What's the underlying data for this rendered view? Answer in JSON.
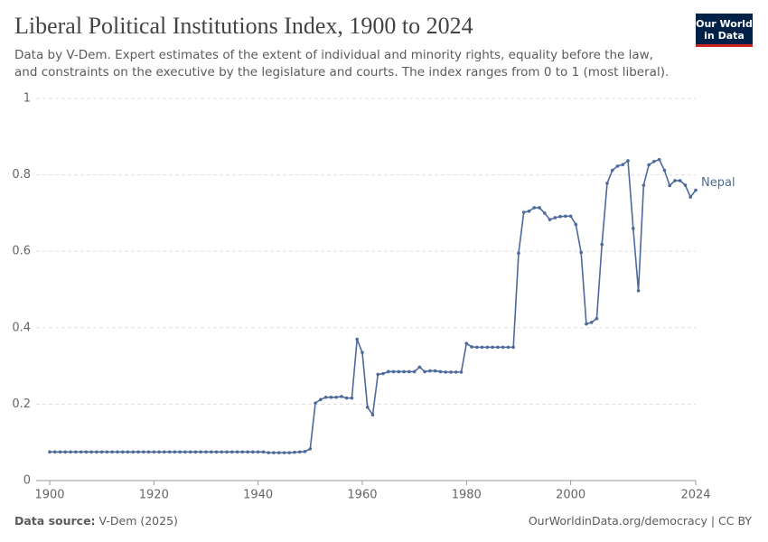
{
  "chart_data": {
    "type": "line",
    "title": "Liberal Political Institutions Index, 1900 to 2024",
    "subtitle": "Data by V-Dem. Expert estimates of the extent of individual and minority rights, equality before the law, and constraints on the executive by the legislature and courts. The index ranges from 0 to 1 (most liberal).",
    "logo": [
      "Our World",
      "in Data"
    ],
    "source_label": "Data source:",
    "source": "V-Dem (2025)",
    "footer_right": "OurWorldinData.org/democracy | CC BY",
    "x": [
      1900,
      1901,
      1902,
      1903,
      1904,
      1905,
      1906,
      1907,
      1908,
      1909,
      1910,
      1911,
      1912,
      1913,
      1914,
      1915,
      1916,
      1917,
      1918,
      1919,
      1920,
      1921,
      1922,
      1923,
      1924,
      1925,
      1926,
      1927,
      1928,
      1929,
      1930,
      1931,
      1932,
      1933,
      1934,
      1935,
      1936,
      1937,
      1938,
      1939,
      1940,
      1941,
      1942,
      1943,
      1944,
      1945,
      1946,
      1947,
      1948,
      1949,
      1950,
      1951,
      1952,
      1953,
      1954,
      1955,
      1956,
      1957,
      1958,
      1959,
      1960,
      1961,
      1962,
      1963,
      1964,
      1965,
      1966,
      1967,
      1968,
      1969,
      1970,
      1971,
      1972,
      1973,
      1974,
      1975,
      1976,
      1977,
      1978,
      1979,
      1980,
      1981,
      1982,
      1983,
      1984,
      1985,
      1986,
      1987,
      1988,
      1989,
      1990,
      1991,
      1992,
      1993,
      1994,
      1995,
      1996,
      1997,
      1998,
      1999,
      2000,
      2001,
      2002,
      2003,
      2004,
      2005,
      2006,
      2007,
      2008,
      2009,
      2010,
      2011,
      2012,
      2013,
      2014,
      2015,
      2016,
      2017,
      2018,
      2019,
      2020,
      2021,
      2022,
      2023,
      2024
    ],
    "series": [
      {
        "name": "Nepal",
        "color": "#4c6a9c",
        "values": [
          0.075,
          0.075,
          0.075,
          0.075,
          0.075,
          0.075,
          0.075,
          0.075,
          0.075,
          0.075,
          0.075,
          0.075,
          0.075,
          0.075,
          0.075,
          0.075,
          0.075,
          0.075,
          0.075,
          0.075,
          0.075,
          0.075,
          0.075,
          0.075,
          0.075,
          0.075,
          0.075,
          0.075,
          0.075,
          0.075,
          0.075,
          0.075,
          0.075,
          0.075,
          0.075,
          0.075,
          0.075,
          0.075,
          0.075,
          0.075,
          0.075,
          0.075,
          0.073,
          0.073,
          0.073,
          0.073,
          0.073,
          0.074,
          0.075,
          0.076,
          0.083,
          0.203,
          0.212,
          0.218,
          0.218,
          0.218,
          0.22,
          0.216,
          0.216,
          0.37,
          0.335,
          0.192,
          0.172,
          0.278,
          0.28,
          0.285,
          0.285,
          0.285,
          0.285,
          0.285,
          0.285,
          0.297,
          0.285,
          0.287,
          0.287,
          0.285,
          0.284,
          0.284,
          0.284,
          0.284,
          0.359,
          0.35,
          0.349,
          0.349,
          0.349,
          0.349,
          0.349,
          0.349,
          0.349,
          0.349,
          0.595,
          0.702,
          0.705,
          0.714,
          0.714,
          0.7,
          0.683,
          0.688,
          0.691,
          0.692,
          0.692,
          0.67,
          0.597,
          0.41,
          0.414,
          0.424,
          0.618,
          0.778,
          0.812,
          0.823,
          0.827,
          0.837,
          0.66,
          0.497,
          0.773,
          0.826,
          0.835,
          0.84,
          0.812,
          0.772,
          0.785,
          0.785,
          0.773,
          0.742,
          0.76
        ]
      }
    ],
    "xlim": [
      1900,
      2024
    ],
    "xticks": [
      1900,
      1920,
      1940,
      1960,
      1980,
      2000,
      2024
    ],
    "ylim": [
      0,
      1
    ],
    "yticks": [
      0,
      0.2,
      0.4,
      0.6,
      0.8,
      1
    ],
    "grid": true
  }
}
